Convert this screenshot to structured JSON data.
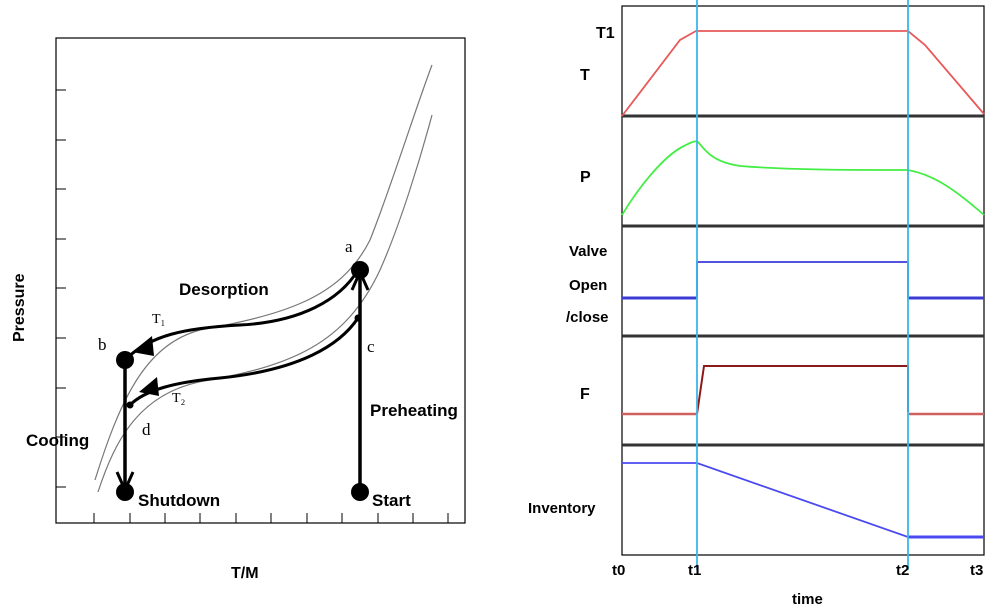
{
  "left_diagram": {
    "ylabel": "Pressure",
    "xlabel": "T/M",
    "points": {
      "a": "a",
      "b": "b",
      "c": "c",
      "d": "d"
    },
    "isotherms": {
      "t1": "T₁",
      "t2": "T₂"
    },
    "stages": {
      "desorption": "Desorption",
      "preheating": "Preheating",
      "cooling": "Cooling",
      "shutdown": "Shutdown",
      "start": "Start"
    }
  },
  "right_diagram": {
    "rows": {
      "t": {
        "top": "T1",
        "main": "T"
      },
      "p": "P",
      "valve": [
        "Valve",
        "Open",
        "/close"
      ],
      "f": "F",
      "inventory": "Inventory"
    },
    "time_ticks": [
      "t0",
      "t1",
      "t2",
      "t3"
    ],
    "xlabel": "time"
  },
  "colors": {
    "temperature": "#e85a5a",
    "pressure": "#44ee44",
    "valve": "#3b3bd6",
    "flow_high": "#8b1a1a",
    "flow_low": "#d06060",
    "inventory": "#4a4af0",
    "marker_lines": "#3ab6ea"
  }
}
